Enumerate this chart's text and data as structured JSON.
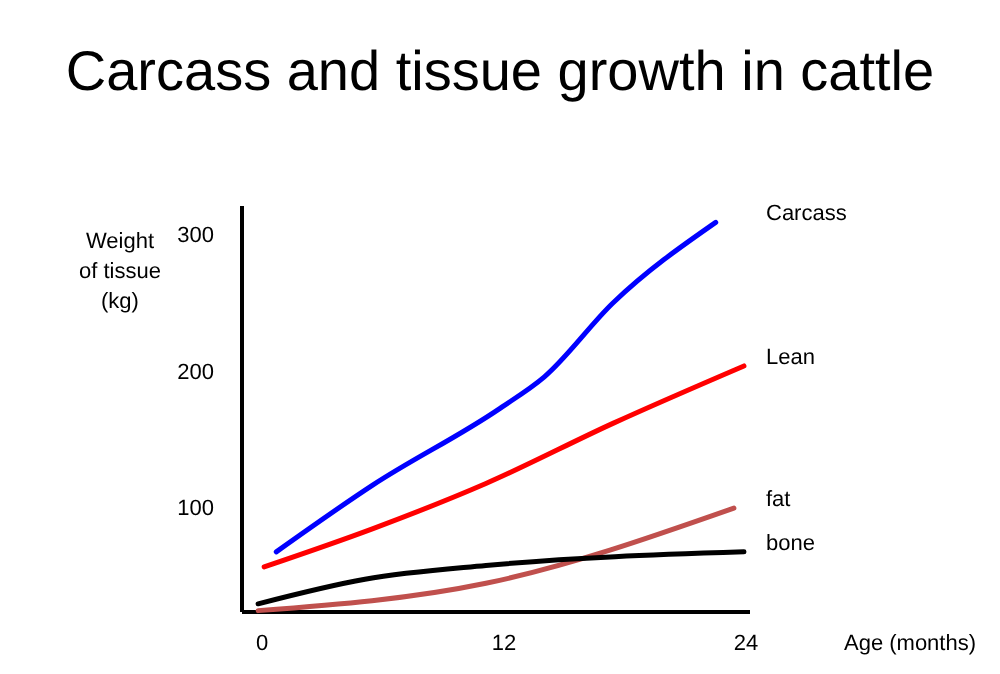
{
  "chart_data": {
    "type": "line",
    "title": "Carcass and tissue growth in cattle",
    "xlabel": "Age (months)",
    "ylabel": "Weight\nof tissue\n(kg)",
    "xlim": [
      -1,
      24.2
    ],
    "ylim": [
      25,
      322
    ],
    "xticks": [
      0,
      12,
      24
    ],
    "yticks": [
      100,
      200,
      300
    ],
    "grid": false,
    "marker": "none",
    "line_style": "solid",
    "series": [
      {
        "name": "Carcass",
        "color": "#0000ff",
        "x": [
          0.7,
          5.5,
          11.8,
          14,
          17.4,
          22.5
        ],
        "values": [
          69,
          118,
          174,
          197,
          251,
          310
        ]
      },
      {
        "name": "Lean",
        "color": "#ff0000",
        "x": [
          0.1,
          5.5,
          11.1,
          17.4,
          23.9
        ],
        "values": [
          58,
          86,
          119,
          163,
          205
        ]
      },
      {
        "name": "fat",
        "color": "#c0504d",
        "x": [
          -0.2,
          11.1,
          23.4
        ],
        "values": [
          26,
          46,
          101
        ]
      },
      {
        "name": "bone",
        "color": "#000000",
        "x": [
          -0.2,
          5.1,
          11.1,
          23.9
        ],
        "values": [
          31,
          49,
          59,
          69
        ]
      }
    ]
  }
}
